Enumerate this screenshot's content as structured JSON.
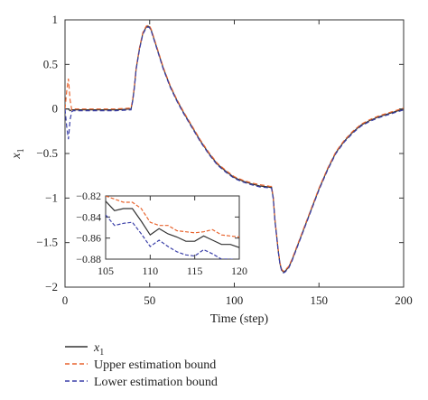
{
  "chart_data": [
    {
      "type": "line",
      "title": "",
      "xlabel": "Time (step)",
      "ylabel": "x",
      "ylabel_subscript": "1",
      "xlim": [
        0,
        200
      ],
      "ylim": [
        -2,
        1
      ],
      "xticks": [
        0,
        50,
        100,
        150,
        200
      ],
      "yticks": [
        1,
        0.5,
        0,
        -0.5,
        -1,
        -1.5,
        -2
      ],
      "xtick_labels": [
        "0",
        "50",
        "100",
        "150",
        "200"
      ],
      "ytick_labels": [
        "1",
        "0.5",
        "0",
        "−0.5",
        "−1",
        "−1.5",
        "−2"
      ],
      "grid": false,
      "legend_position": "bottom-left outside",
      "series": [
        {
          "name": "x",
          "name_subscript": "1",
          "color": "#333333",
          "dash": "solid",
          "x": [
            0,
            1,
            2,
            3,
            4,
            5,
            10,
            20,
            30,
            39,
            40,
            41,
            42,
            44,
            46,
            48,
            49,
            50,
            51,
            52,
            54,
            56,
            58,
            60,
            62,
            64,
            66,
            68,
            70,
            75,
            80,
            85,
            90,
            95,
            100,
            105,
            110,
            115,
            120,
            121,
            122,
            123,
            124,
            126,
            127,
            128,
            129,
            130,
            132,
            134,
            136,
            138,
            140,
            145,
            150,
            155,
            160,
            165,
            170,
            175,
            180,
            185,
            190,
            195,
            200
          ],
          "y": [
            0,
            0,
            0,
            -0.02,
            -0.01,
            -0.01,
            -0.01,
            -0.01,
            -0.01,
            0.0,
            0.1,
            0.25,
            0.45,
            0.68,
            0.85,
            0.92,
            0.93,
            0.92,
            0.88,
            0.82,
            0.7,
            0.58,
            0.46,
            0.36,
            0.26,
            0.18,
            0.1,
            0.03,
            -0.04,
            -0.2,
            -0.36,
            -0.5,
            -0.62,
            -0.7,
            -0.77,
            -0.81,
            -0.84,
            -0.865,
            -0.875,
            -0.88,
            -0.88,
            -1.0,
            -1.25,
            -1.6,
            -1.74,
            -1.81,
            -1.83,
            -1.82,
            -1.78,
            -1.7,
            -1.6,
            -1.5,
            -1.4,
            -1.15,
            -0.9,
            -0.68,
            -0.49,
            -0.36,
            -0.26,
            -0.18,
            -0.13,
            -0.09,
            -0.06,
            -0.03,
            0.0
          ]
        },
        {
          "name": "Upper estimation bound",
          "color": "#e8642e",
          "dash": "dashed",
          "x": [
            0,
            1,
            2,
            3,
            4,
            5,
            10,
            20,
            30,
            39,
            40,
            41,
            42,
            44,
            46,
            48,
            49,
            50,
            51,
            52,
            54,
            56,
            58,
            60,
            62,
            64,
            66,
            68,
            70,
            75,
            80,
            85,
            90,
            95,
            100,
            105,
            110,
            115,
            120,
            121,
            122,
            123,
            124,
            126,
            127,
            128,
            129,
            130,
            132,
            134,
            136,
            138,
            140,
            145,
            150,
            155,
            160,
            165,
            170,
            175,
            180,
            185,
            190,
            195,
            200
          ],
          "y": [
            0,
            0.2,
            0.34,
            0.1,
            -0.01,
            0.0,
            0.0,
            0.0,
            0.0,
            0.01,
            0.11,
            0.26,
            0.46,
            0.69,
            0.86,
            0.93,
            0.94,
            0.93,
            0.89,
            0.83,
            0.71,
            0.59,
            0.47,
            0.37,
            0.27,
            0.19,
            0.11,
            0.04,
            -0.03,
            -0.19,
            -0.35,
            -0.49,
            -0.61,
            -0.69,
            -0.76,
            -0.8,
            -0.83,
            -0.85,
            -0.865,
            -0.87,
            -0.87,
            -0.99,
            -1.24,
            -1.59,
            -1.73,
            -1.8,
            -1.82,
            -1.81,
            -1.77,
            -1.69,
            -1.59,
            -1.49,
            -1.39,
            -1.14,
            -0.89,
            -0.67,
            -0.48,
            -0.35,
            -0.25,
            -0.17,
            -0.12,
            -0.08,
            -0.05,
            -0.02,
            0.01
          ]
        },
        {
          "name": "Lower estimation bound",
          "color": "#3a3fa8",
          "dash": "dashed",
          "x": [
            0,
            1,
            2,
            3,
            4,
            5,
            10,
            20,
            30,
            39,
            40,
            41,
            42,
            44,
            46,
            48,
            49,
            50,
            51,
            52,
            54,
            56,
            58,
            60,
            62,
            64,
            66,
            68,
            70,
            75,
            80,
            85,
            90,
            95,
            100,
            105,
            110,
            115,
            120,
            121,
            122,
            123,
            124,
            126,
            127,
            128,
            129,
            130,
            132,
            134,
            136,
            138,
            140,
            145,
            150,
            155,
            160,
            165,
            170,
            175,
            180,
            185,
            190,
            195,
            200
          ],
          "y": [
            0,
            -0.2,
            -0.34,
            -0.12,
            -0.03,
            -0.02,
            -0.02,
            -0.02,
            -0.02,
            -0.01,
            0.09,
            0.24,
            0.44,
            0.67,
            0.84,
            0.91,
            0.92,
            0.91,
            0.87,
            0.81,
            0.69,
            0.57,
            0.45,
            0.35,
            0.25,
            0.17,
            0.09,
            0.02,
            -0.05,
            -0.21,
            -0.37,
            -0.51,
            -0.63,
            -0.71,
            -0.78,
            -0.82,
            -0.85,
            -0.875,
            -0.885,
            -0.89,
            -0.89,
            -1.01,
            -1.26,
            -1.61,
            -1.75,
            -1.82,
            -1.84,
            -1.83,
            -1.79,
            -1.71,
            -1.61,
            -1.51,
            -1.41,
            -1.16,
            -0.91,
            -0.69,
            -0.5,
            -0.37,
            -0.27,
            -0.19,
            -0.14,
            -0.1,
            -0.07,
            -0.04,
            -0.01
          ]
        }
      ]
    },
    {
      "type": "line",
      "title": "",
      "xlabel": "",
      "ylabel": "",
      "xlim": [
        105,
        120
      ],
      "ylim": [
        -0.88,
        -0.82
      ],
      "xticks": [
        105,
        110,
        115,
        120
      ],
      "yticks": [
        -0.82,
        -0.84,
        -0.86,
        -0.88
      ],
      "xtick_labels": [
        "105",
        "110",
        "115",
        "120"
      ],
      "ytick_labels": [
        "−0.82",
        "−0.84",
        "−0.86",
        "−0.88"
      ],
      "grid": false,
      "legend_position": "none",
      "series": [
        {
          "color": "#333333",
          "dash": "solid",
          "x": [
            105,
            106,
            107,
            108,
            109,
            110,
            111,
            112,
            113,
            114,
            115,
            116,
            117,
            118,
            119,
            120
          ],
          "y": [
            -0.825,
            -0.834,
            -0.832,
            -0.832,
            -0.844,
            -0.857,
            -0.851,
            -0.856,
            -0.859,
            -0.863,
            -0.863,
            -0.858,
            -0.862,
            -0.866,
            -0.866,
            -0.869
          ]
        },
        {
          "color": "#e8642e",
          "dash": "dashed",
          "x": [
            105,
            106,
            107,
            108,
            109,
            110,
            111,
            112,
            113,
            114,
            115,
            116,
            117,
            118,
            119,
            120
          ],
          "y": [
            -0.82,
            -0.823,
            -0.826,
            -0.826,
            -0.832,
            -0.845,
            -0.848,
            -0.848,
            -0.853,
            -0.854,
            -0.855,
            -0.854,
            -0.852,
            -0.857,
            -0.858,
            -0.859
          ]
        },
        {
          "color": "#3a3fa8",
          "dash": "dashed",
          "x": [
            105,
            106,
            107,
            108,
            109,
            110,
            111,
            112,
            113,
            114,
            115,
            116,
            117,
            118,
            119,
            120
          ],
          "y": [
            -0.838,
            -0.848,
            -0.846,
            -0.845,
            -0.856,
            -0.868,
            -0.862,
            -0.868,
            -0.873,
            -0.876,
            -0.877,
            -0.871,
            -0.875,
            -0.88,
            -0.88,
            -0.881
          ]
        }
      ]
    }
  ]
}
